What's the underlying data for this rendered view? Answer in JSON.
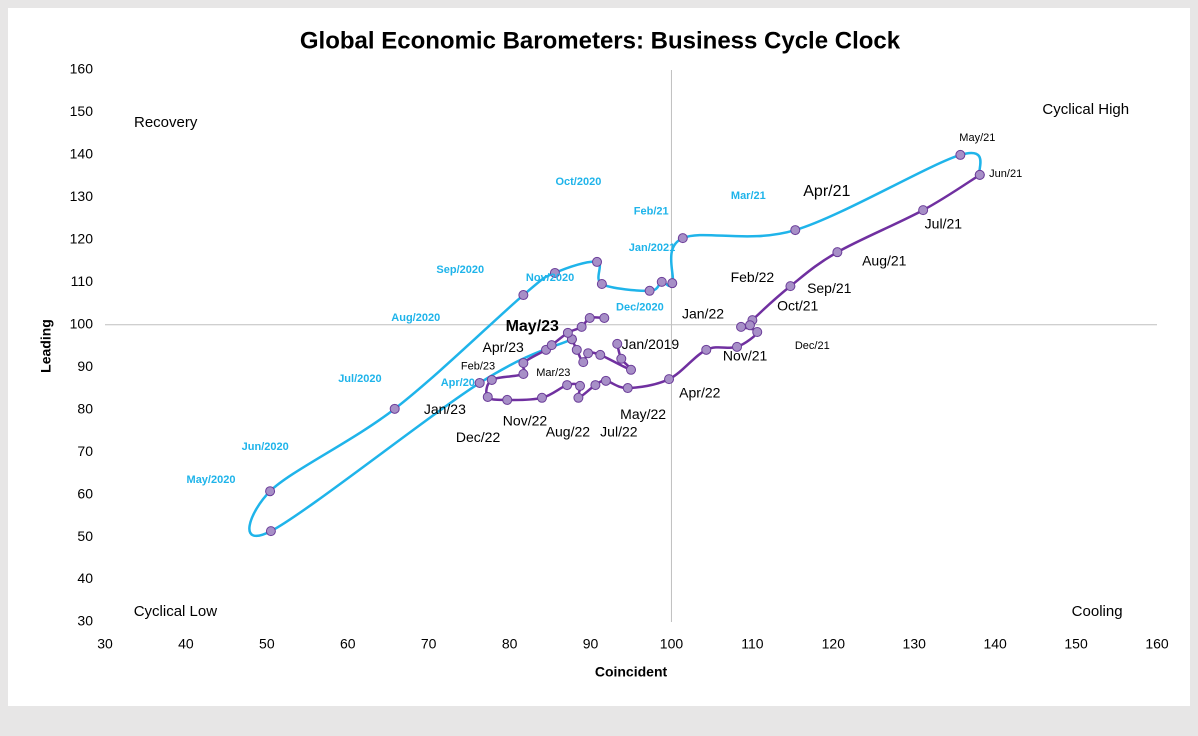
{
  "chart_data": {
    "type": "line",
    "title": "Global Economic Barometers: Business Cycle Clock",
    "x_label": "Coincident",
    "y_label": "Leading",
    "xlim": [
      30,
      160
    ],
    "ylim": [
      30,
      160
    ],
    "xticks": [
      30,
      40,
      50,
      60,
      70,
      80,
      90,
      100,
      110,
      120,
      130,
      140,
      150,
      160
    ],
    "yticks": [
      30,
      40,
      50,
      60,
      70,
      80,
      90,
      100,
      110,
      120,
      130,
      140,
      150,
      160
    ],
    "x_reference": 100,
    "y_reference": 100,
    "smooth": true,
    "marker_color": "#a78fc7",
    "marker_edge": "#6b3d99",
    "series": [
      {
        "color": "#7030a0",
        "x": [
          93.3,
          93.8,
          95.0,
          91.2,
          89.7,
          89.1,
          88.3,
          87.7
        ],
        "y": [
          95.5,
          92.0,
          89.4,
          92.9,
          93.3,
          91.2,
          94.1,
          96.6
        ]
      },
      {
        "color": "#1fb4ea",
        "x": [
          87.7,
          76.3,
          50.5,
          50.4,
          65.8,
          81.7,
          85.6,
          90.8,
          91.4,
          97.3,
          98.8,
          100.1,
          101.4,
          115.3,
          135.7,
          138.1
        ],
        "y": [
          96.6,
          86.3,
          51.4,
          60.8,
          80.2,
          107.0,
          112.2,
          114.8,
          109.6,
          108.0,
          110.1,
          109.8,
          120.4,
          122.3,
          140.0,
          135.3
        ]
      },
      {
        "color": "#7030a0",
        "x": [
          138.1,
          131.1,
          120.5,
          114.7,
          110.0,
          109.7,
          108.6,
          110.6,
          108.1,
          104.3,
          99.7,
          94.6,
          91.9,
          90.6,
          88.5,
          88.7,
          87.1,
          84.0,
          79.7,
          77.3,
          77.8,
          81.7,
          81.7,
          84.5,
          85.2,
          87.2,
          88.9,
          89.9,
          91.7
        ],
        "y": [
          135.3,
          127.0,
          117.1,
          109.1,
          101.1,
          99.9,
          99.5,
          98.3,
          94.8,
          94.1,
          87.2,
          85.1,
          86.8,
          85.8,
          82.8,
          85.6,
          85.8,
          82.8,
          82.3,
          83.0,
          87.0,
          88.4,
          91.0,
          94.1,
          95.2,
          98.1,
          99.5,
          101.6,
          101.6
        ]
      }
    ],
    "annotations": [
      {
        "text": "Recovery",
        "x": 37.5,
        "y": 147.5,
        "color": "#000000",
        "style": "corner"
      },
      {
        "text": "Cyclical High",
        "x": 151.2,
        "y": 150.6,
        "color": "#000000",
        "style": "corner"
      },
      {
        "text": "Cyclical Low",
        "x": 38.7,
        "y": 32.4,
        "color": "#000000",
        "style": "corner"
      },
      {
        "text": "Cooling",
        "x": 152.6,
        "y": 32.4,
        "color": "#000000",
        "style": "corner"
      },
      {
        "text": "Oct/2020",
        "x": 88.5,
        "y": 133.6,
        "color": "#1fb4ea",
        "style": "blue"
      },
      {
        "text": "Feb/21",
        "x": 97.5,
        "y": 126.6,
        "color": "#1fb4ea",
        "style": "blue"
      },
      {
        "text": "Mar/21",
        "x": 109.5,
        "y": 130.3,
        "color": "#1fb4ea",
        "style": "blue"
      },
      {
        "text": "Jan/2021",
        "x": 97.6,
        "y": 118.1,
        "color": "#1fb4ea",
        "style": "blue"
      },
      {
        "text": "Sep/2020",
        "x": 73.9,
        "y": 112.9,
        "color": "#1fb4ea",
        "style": "blue"
      },
      {
        "text": "Nov/2020",
        "x": 85.0,
        "y": 111.0,
        "color": "#1fb4ea",
        "style": "blue"
      },
      {
        "text": "Aug/2020",
        "x": 68.4,
        "y": 101.6,
        "color": "#1fb4ea",
        "style": "blue"
      },
      {
        "text": "Dec/2020",
        "x": 96.1,
        "y": 104.0,
        "color": "#1fb4ea",
        "style": "blue"
      },
      {
        "text": "Jul/2020",
        "x": 61.5,
        "y": 87.2,
        "color": "#1fb4ea",
        "style": "blue"
      },
      {
        "text": "Apr/20",
        "x": 73.6,
        "y": 86.3,
        "color": "#1fb4ea",
        "style": "blue"
      },
      {
        "text": "Jun/2020",
        "x": 49.8,
        "y": 71.2,
        "color": "#1fb4ea",
        "style": "blue"
      },
      {
        "text": "May/2020",
        "x": 43.1,
        "y": 63.4,
        "color": "#1fb4ea",
        "style": "blue"
      },
      {
        "text": "May/21",
        "x": 137.8,
        "y": 144.0,
        "color": "#000000",
        "style": "small"
      },
      {
        "text": "Jun/21",
        "x": 141.3,
        "y": 135.5,
        "color": "#000000",
        "style": "small"
      },
      {
        "text": "Apr/21",
        "x": 119.2,
        "y": 131.3,
        "color": "#000000",
        "style": "large"
      },
      {
        "text": "Jul/21",
        "x": 133.6,
        "y": 123.5,
        "color": "#000000",
        "style": "normal"
      },
      {
        "text": "Aug/21",
        "x": 126.3,
        "y": 114.8,
        "color": "#000000",
        "style": "normal"
      },
      {
        "text": "Feb/22",
        "x": 110.0,
        "y": 111.0,
        "color": "#000000",
        "style": "normal"
      },
      {
        "text": "Sep/21",
        "x": 119.5,
        "y": 108.4,
        "color": "#000000",
        "style": "normal"
      },
      {
        "text": "Oct/21",
        "x": 115.6,
        "y": 104.2,
        "color": "#000000",
        "style": "normal"
      },
      {
        "text": "Jan/22",
        "x": 103.9,
        "y": 102.3,
        "color": "#000000",
        "style": "normal"
      },
      {
        "text": "Dec/21",
        "x": 117.4,
        "y": 95.0,
        "color": "#000000",
        "style": "small"
      },
      {
        "text": "Nov/21",
        "x": 109.1,
        "y": 92.4,
        "color": "#000000",
        "style": "normal"
      },
      {
        "text": "May/23",
        "x": 82.8,
        "y": 99.5,
        "color": "#000000",
        "style": "bold"
      },
      {
        "text": "Jan/2019",
        "x": 97.4,
        "y": 95.2,
        "color": "#000000",
        "style": "normal"
      },
      {
        "text": "Apr/23",
        "x": 79.2,
        "y": 94.5,
        "color": "#000000",
        "style": "normal"
      },
      {
        "text": "Feb/23",
        "x": 76.1,
        "y": 90.1,
        "color": "#000000",
        "style": "small"
      },
      {
        "text": "Mar/23",
        "x": 85.4,
        "y": 88.6,
        "color": "#000000",
        "style": "small"
      },
      {
        "text": "Apr/22",
        "x": 103.5,
        "y": 83.7,
        "color": "#000000",
        "style": "normal"
      },
      {
        "text": "Jan/23",
        "x": 72.0,
        "y": 79.9,
        "color": "#000000",
        "style": "normal"
      },
      {
        "text": "May/22",
        "x": 96.5,
        "y": 78.7,
        "color": "#000000",
        "style": "normal"
      },
      {
        "text": "Nov/22",
        "x": 81.9,
        "y": 77.1,
        "color": "#000000",
        "style": "normal"
      },
      {
        "text": "Dec/22",
        "x": 76.1,
        "y": 73.3,
        "color": "#000000",
        "style": "normal"
      },
      {
        "text": "Aug/22",
        "x": 87.2,
        "y": 74.5,
        "color": "#000000",
        "style": "normal"
      },
      {
        "text": "Jul/22",
        "x": 93.5,
        "y": 74.5,
        "color": "#000000",
        "style": "normal"
      }
    ]
  }
}
